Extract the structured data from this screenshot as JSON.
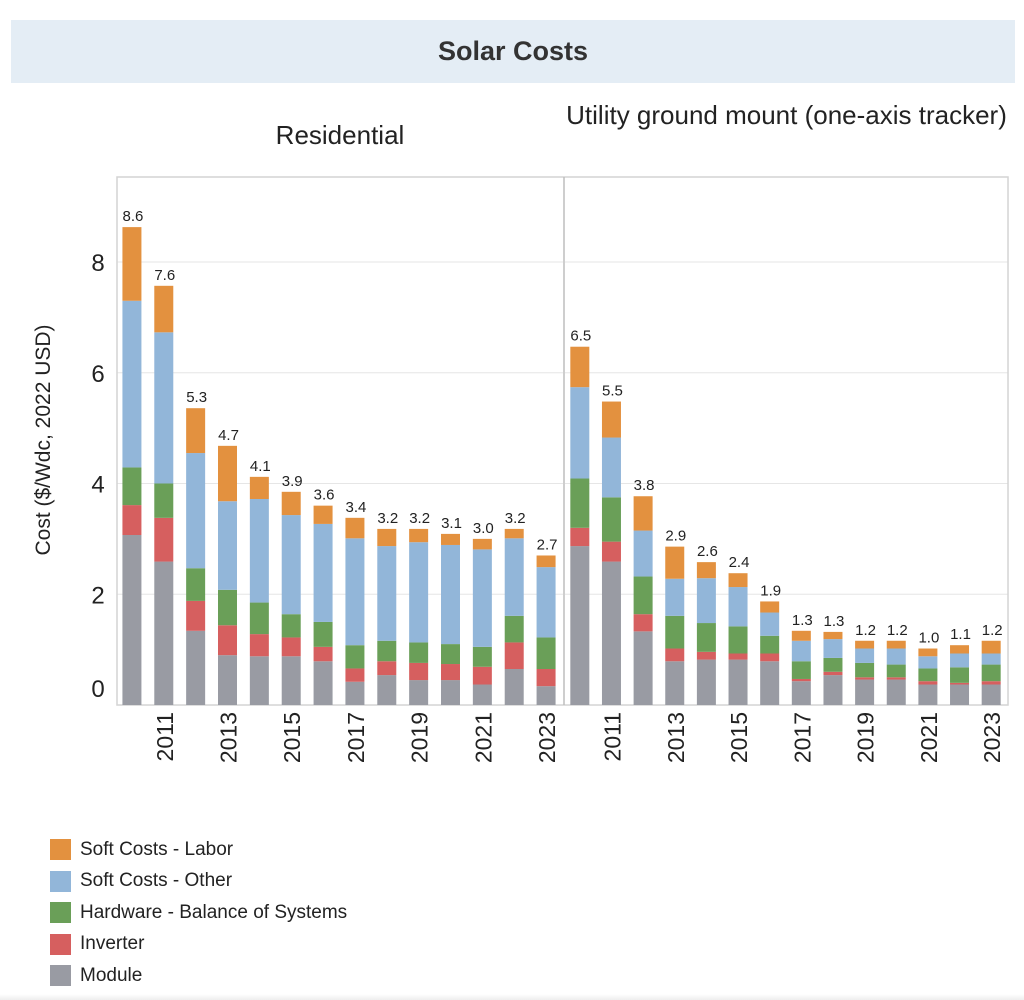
{
  "header": {
    "title": "Solar Costs"
  },
  "chart_data": {
    "type": "bar",
    "stacked": true,
    "title": "Solar Costs",
    "ylabel": "Cost ($/Wdc, 2022 USD)",
    "xlabel": "",
    "ylim": [
      0,
      9.5
    ],
    "yticks": [
      0,
      2,
      4,
      6,
      8
    ],
    "grid": true,
    "legend_position": "bottom-left",
    "categories": [
      "2010",
      "2011",
      "2012",
      "2013",
      "2014",
      "2015",
      "2016",
      "2017",
      "2018",
      "2019",
      "2020",
      "2021",
      "2022",
      "2023"
    ],
    "xtick_labels": [
      "",
      "2011",
      "",
      "2013",
      "",
      "2015",
      "",
      "2017",
      "",
      "2019",
      "",
      "2021",
      "",
      "2023"
    ],
    "series_order_bottom_to_top": [
      "Module",
      "Inverter",
      "Hardware - Balance of Systems",
      "Soft Costs - Other",
      "Soft Costs - Labor"
    ],
    "legend": [
      {
        "name": "Soft Costs - Labor",
        "color": "#e3913f"
      },
      {
        "name": "Soft Costs - Other",
        "color": "#92b6d9"
      },
      {
        "name": "Hardware - Balance of Systems",
        "color": "#6a9f58"
      },
      {
        "name": "Inverter",
        "color": "#d65f5f"
      },
      {
        "name": "Module",
        "color": "#999ba3"
      }
    ],
    "panels": [
      {
        "title": "Residential",
        "totals_labels": [
          "8.6",
          "7.6",
          "5.3",
          "4.7",
          "4.1",
          "3.9",
          "3.6",
          "3.4",
          "3.2",
          "3.2",
          "3.1",
          "3.0",
          "3.2",
          "2.7"
        ],
        "series": [
          {
            "name": "Module",
            "color": "#999ba3",
            "values": [
              3.07,
              2.59,
              1.34,
              0.9,
              0.88,
              0.88,
              0.79,
              0.42,
              0.54,
              0.45,
              0.45,
              0.37,
              0.65,
              0.34
            ]
          },
          {
            "name": "Inverter",
            "color": "#d65f5f",
            "values": [
              0.54,
              0.79,
              0.54,
              0.54,
              0.4,
              0.34,
              0.26,
              0.24,
              0.25,
              0.31,
              0.29,
              0.32,
              0.48,
              0.31
            ]
          },
          {
            "name": "Hardware - Balance of Systems",
            "color": "#6a9f58",
            "values": [
              0.68,
              0.62,
              0.59,
              0.64,
              0.57,
              0.42,
              0.45,
              0.42,
              0.37,
              0.37,
              0.36,
              0.36,
              0.48,
              0.57
            ]
          },
          {
            "name": "Soft Costs - Other",
            "color": "#92b6d9",
            "values": [
              3.01,
              2.73,
              2.08,
              1.6,
              1.87,
              1.79,
              1.77,
              1.93,
              1.71,
              1.81,
              1.79,
              1.76,
              1.4,
              1.27
            ]
          },
          {
            "name": "Soft Costs - Labor",
            "color": "#e3913f",
            "values": [
              1.33,
              0.84,
              0.81,
              1.0,
              0.4,
              0.42,
              0.33,
              0.37,
              0.31,
              0.24,
              0.2,
              0.19,
              0.17,
              0.21
            ]
          }
        ]
      },
      {
        "title": "Utility ground mount (one-axis tracker)",
        "totals_labels": [
          "6.5",
          "5.5",
          "3.8",
          "2.9",
          "2.6",
          "2.4",
          "1.9",
          "1.3",
          "1.3",
          "1.2",
          "1.2",
          "1.0",
          "1.1",
          "1.2"
        ],
        "series": [
          {
            "name": "Module",
            "color": "#999ba3",
            "values": [
              2.87,
              2.59,
              1.33,
              0.79,
              0.82,
              0.82,
              0.79,
              0.43,
              0.54,
              0.46,
              0.46,
              0.37,
              0.37,
              0.37
            ]
          },
          {
            "name": "Inverter",
            "color": "#d65f5f",
            "values": [
              0.33,
              0.36,
              0.31,
              0.23,
              0.14,
              0.11,
              0.14,
              0.04,
              0.06,
              0.04,
              0.04,
              0.06,
              0.03,
              0.06
            ]
          },
          {
            "name": "Hardware - Balance of Systems",
            "color": "#6a9f58",
            "values": [
              0.89,
              0.8,
              0.68,
              0.59,
              0.52,
              0.49,
              0.32,
              0.32,
              0.25,
              0.26,
              0.23,
              0.23,
              0.28,
              0.3
            ]
          },
          {
            "name": "Soft Costs - Other",
            "color": "#92b6d9",
            "values": [
              1.65,
              1.08,
              0.83,
              0.67,
              0.81,
              0.71,
              0.42,
              0.37,
              0.34,
              0.26,
              0.29,
              0.22,
              0.25,
              0.2
            ]
          },
          {
            "name": "Soft Costs - Labor",
            "color": "#e3913f",
            "values": [
              0.73,
              0.65,
              0.62,
              0.58,
              0.29,
              0.25,
              0.2,
              0.18,
              0.13,
              0.14,
              0.14,
              0.14,
              0.15,
              0.23
            ]
          }
        ]
      }
    ]
  }
}
